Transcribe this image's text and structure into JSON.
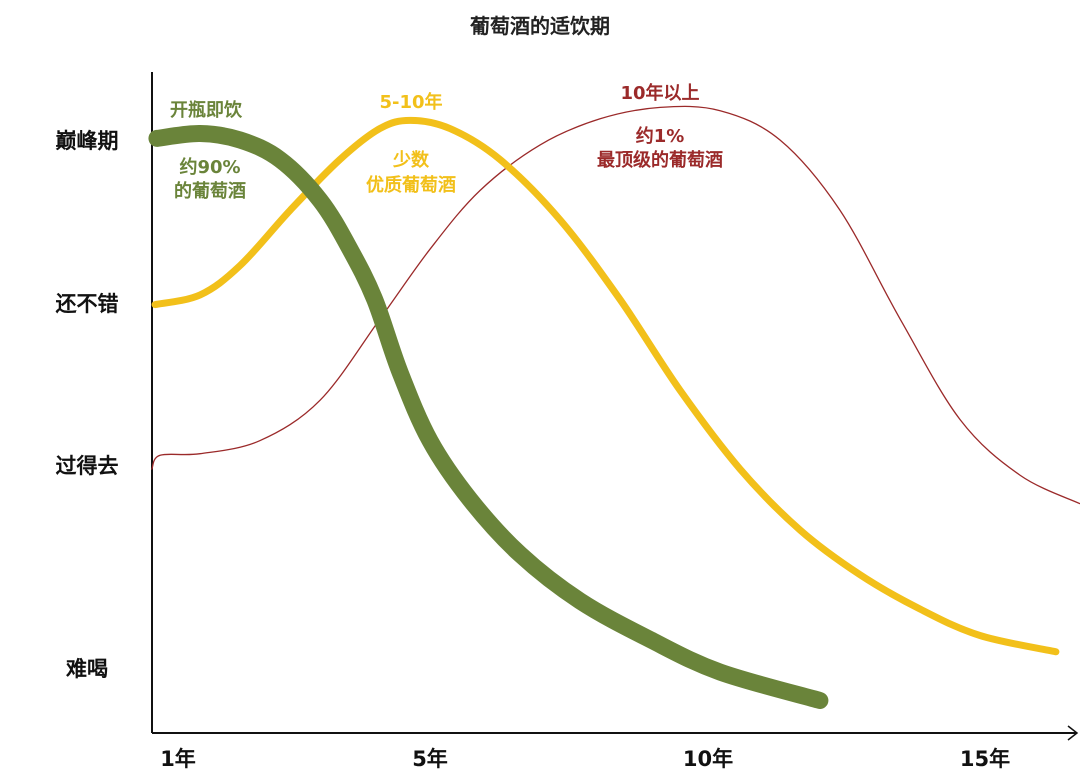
{
  "chart_data": {
    "type": "line",
    "title": "葡萄酒的适饮期",
    "xlabel": "",
    "ylabel": "",
    "x_ticks": [
      {
        "value": 1,
        "label": "1年"
      },
      {
        "value": 5,
        "label": "5年"
      },
      {
        "value": 10,
        "label": "10年"
      },
      {
        "value": 15,
        "label": "15年"
      }
    ],
    "y_ticks": [
      {
        "value": 3,
        "label": "巅峰期"
      },
      {
        "value": 2,
        "label": "还不错"
      },
      {
        "value": 1,
        "label": "过得去"
      },
      {
        "value": 0,
        "label": "难喝"
      }
    ],
    "xlim": [
      0.6,
      16.8
    ],
    "ylim": [
      -0.3,
      3.4
    ],
    "grid": false,
    "series": [
      {
        "name": "开瓶即饮",
        "note_lines": [
          "约90%",
          "的葡萄酒"
        ],
        "color": "#6a843a",
        "x": [
          0.7,
          1.38,
          2.01,
          2.64,
          3.27,
          3.74,
          4.13,
          4.53,
          5.0,
          5.72,
          6.62,
          7.7,
          8.96,
          10.22,
          12.02
        ],
        "y": [
          3.01,
          3.04,
          3.0,
          2.88,
          2.63,
          2.33,
          2.02,
          1.57,
          1.15,
          0.83,
          0.56,
          0.33,
          0.14,
          -0.02,
          -0.16
        ]
      },
      {
        "name": "5-10年",
        "note_lines": [
          "少数",
          "优质葡萄酒"
        ],
        "color": "#f2c01a",
        "x": [
          0.67,
          1.38,
          2.01,
          2.8,
          3.58,
          4.21,
          4.69,
          5.36,
          6.26,
          7.34,
          8.42,
          9.5,
          10.58,
          11.66,
          12.74,
          13.83,
          14.91,
          16.28
        ],
        "y": [
          1.99,
          2.05,
          2.23,
          2.57,
          2.88,
          3.07,
          3.12,
          3.07,
          2.88,
          2.51,
          2.02,
          1.46,
          0.98,
          0.68,
          0.46,
          0.29,
          0.16,
          0.08
        ]
      },
      {
        "name": "10年以上",
        "note_lines": [
          "约1%",
          "最顶级的葡萄酒"
        ],
        "color": "#9b2a2a",
        "x": [
          0.62,
          0.75,
          1.38,
          2.32,
          3.27,
          4.21,
          5.0,
          5.9,
          6.98,
          8.06,
          9.14,
          10.22,
          11.3,
          12.38,
          13.47,
          14.55,
          15.63,
          16.71
        ],
        "y": [
          0.98,
          1.06,
          1.07,
          1.15,
          1.4,
          1.9,
          2.33,
          2.69,
          2.97,
          3.13,
          3.2,
          3.18,
          3.0,
          2.57,
          1.9,
          1.28,
          0.95,
          0.81
        ]
      }
    ]
  }
}
